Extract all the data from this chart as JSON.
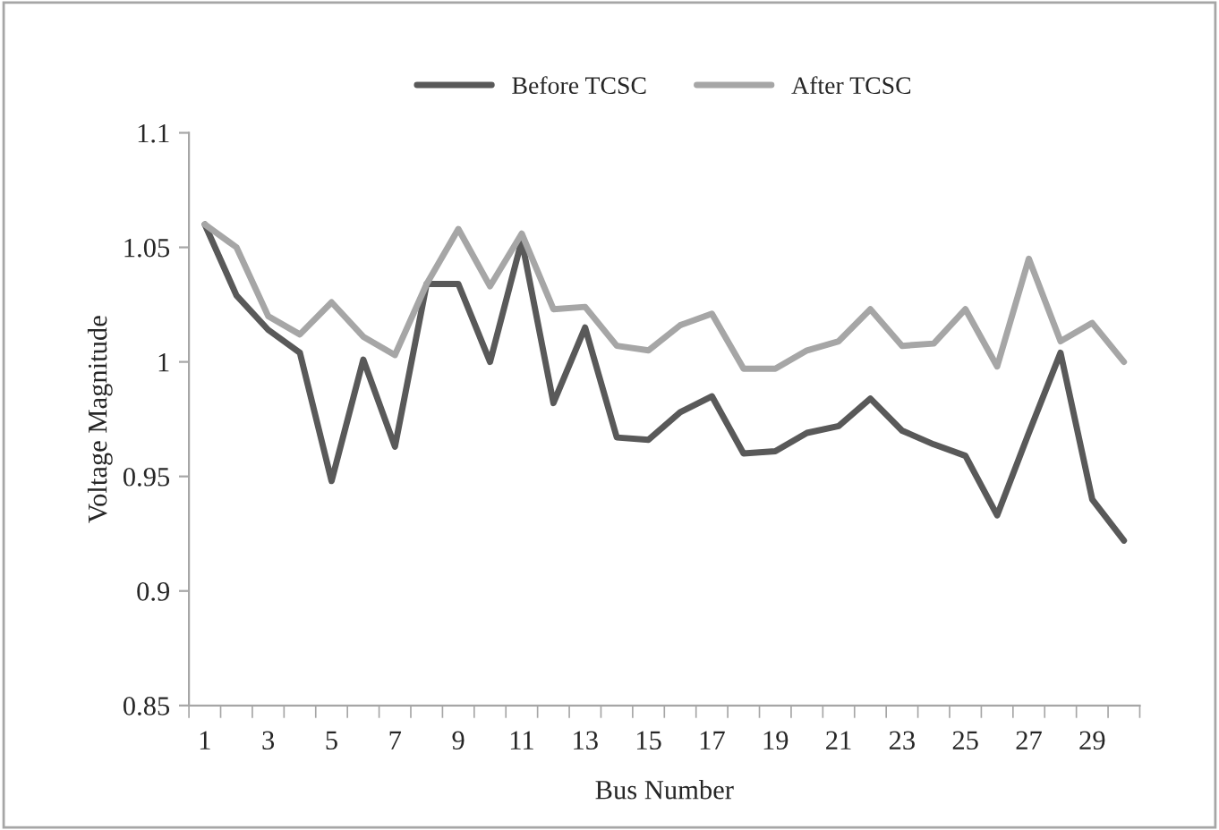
{
  "chart_data": {
    "type": "line",
    "xlabel": "Bus Number",
    "ylabel": "Voltage Magnitude",
    "categories": [
      "1",
      null,
      "3",
      null,
      "5",
      null,
      "7",
      null,
      "9",
      null,
      "11",
      null,
      "13",
      null,
      "15",
      null,
      "17",
      null,
      "19",
      null,
      "21",
      null,
      "23",
      null,
      "25",
      null,
      "27",
      null,
      "29",
      null
    ],
    "series": [
      {
        "name": "Before TCSC",
        "color": "#595959",
        "values": [
          1.06,
          1.029,
          1.014,
          1.004,
          0.948,
          1.001,
          0.963,
          1.034,
          1.034,
          1.0,
          1.053,
          0.982,
          1.015,
          0.967,
          0.966,
          0.978,
          0.985,
          0.96,
          0.961,
          0.969,
          0.972,
          0.984,
          0.97,
          0.964,
          0.959,
          0.933,
          0.969,
          1.004,
          0.94,
          0.922
        ]
      },
      {
        "name": "After TCSC",
        "color": "#a6a6a6",
        "values": [
          1.06,
          1.05,
          1.02,
          1.012,
          1.026,
          1.011,
          1.003,
          1.034,
          1.058,
          1.033,
          1.056,
          1.023,
          1.024,
          1.007,
          1.005,
          1.016,
          1.021,
          0.997,
          0.997,
          1.005,
          1.009,
          1.023,
          1.007,
          1.008,
          1.023,
          0.998,
          1.045,
          1.009,
          1.017,
          1.0
        ]
      }
    ],
    "ylim": [
      0.85,
      1.1
    ],
    "yticks": [
      0.85,
      0.9,
      0.95,
      1,
      1.05,
      1.1
    ],
    "grid": false,
    "legend": "top",
    "marker": "none",
    "line_style": "solid"
  }
}
